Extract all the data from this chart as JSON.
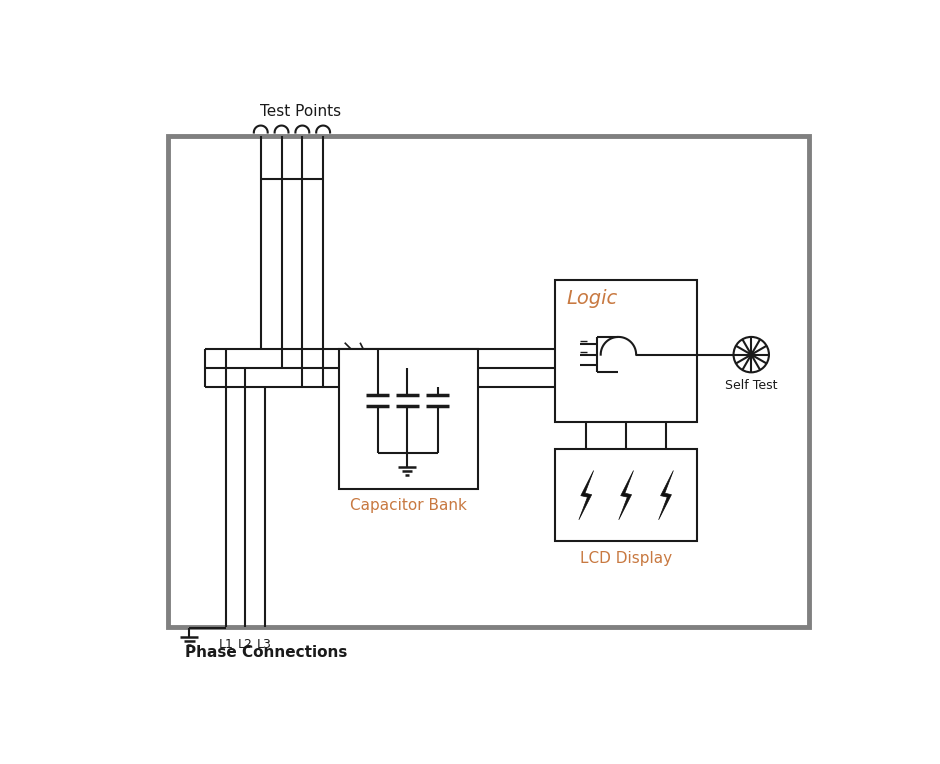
{
  "bg": "#ffffff",
  "lc": "#1a1a1a",
  "bc": "#808080",
  "oc": "#c87941",
  "lw": 1.5,
  "lwt": 2.5,
  "labels": {
    "test_points": "Test Points",
    "phase_conn": "Phase Connections",
    "cap_bank": "Capacitor Bank",
    "lcd": "LCD Display",
    "self_test": "Self Test",
    "logic": "Logic",
    "phases": [
      "L1",
      "L2",
      "L3"
    ]
  }
}
